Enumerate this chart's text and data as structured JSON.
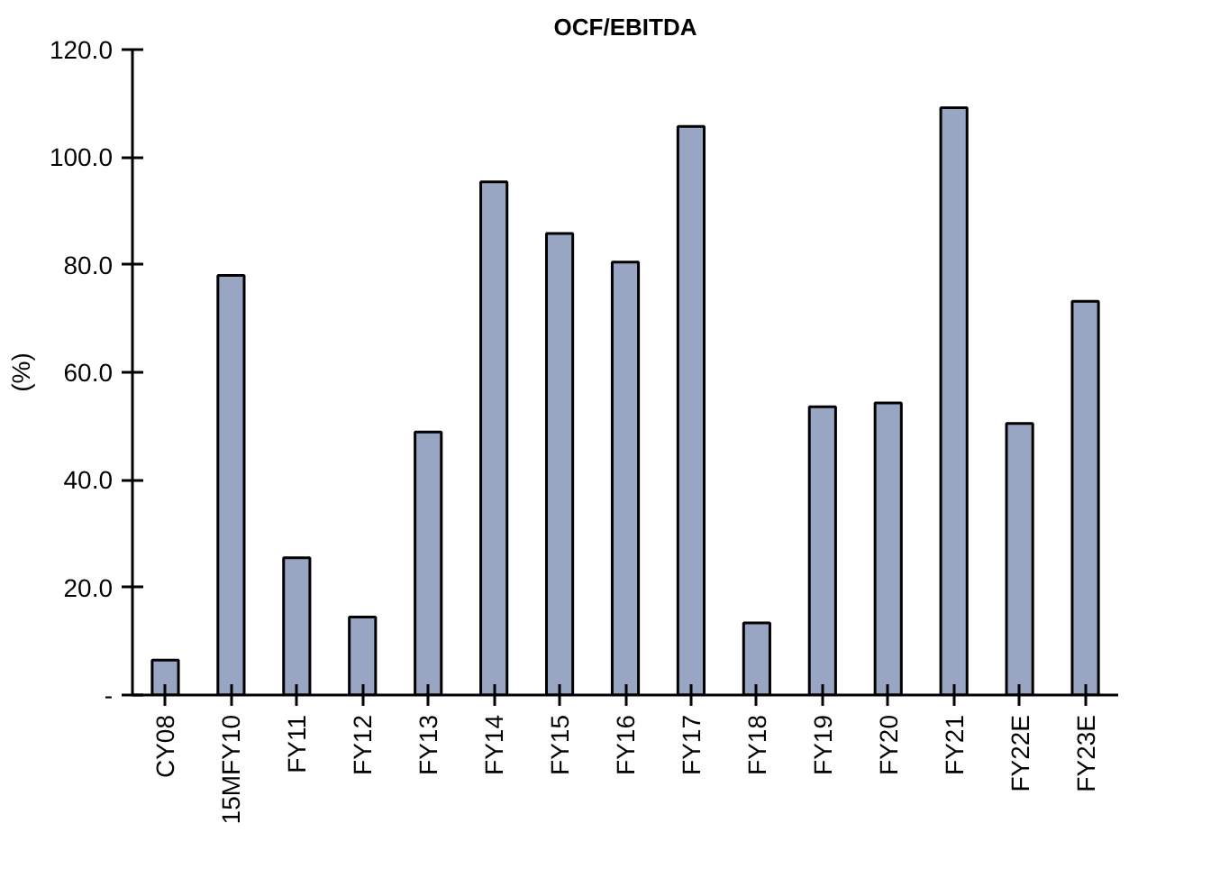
{
  "chart_data": {
    "type": "bar",
    "title": "OCF/EBITDA",
    "ylabel": "(%)",
    "categories": [
      "CY08",
      "15MFY10",
      "FY11",
      "FY12",
      "FY13",
      "FY14",
      "FY15",
      "FY16",
      "FY17",
      "FY18",
      "FY19",
      "FY20",
      "FY21",
      "FY22E",
      "FY23E"
    ],
    "values": [
      6.5,
      78.0,
      25.5,
      14.5,
      48.9,
      95.4,
      85.8,
      80.5,
      105.7,
      13.4,
      53.6,
      54.3,
      109.2,
      50.5,
      73.2
    ],
    "color": "#98a6c4",
    "ylim": [
      0,
      120
    ],
    "yticks": [
      {
        "value": 0,
        "label": "-"
      },
      {
        "value": 20,
        "label": "20.0"
      },
      {
        "value": 40,
        "label": "40.0"
      },
      {
        "value": 60,
        "label": "60.0"
      },
      {
        "value": 80,
        "label": "80.0"
      },
      {
        "value": 100,
        "label": "100.0"
      },
      {
        "value": 120,
        "label": "120.0"
      }
    ],
    "grid": false
  }
}
